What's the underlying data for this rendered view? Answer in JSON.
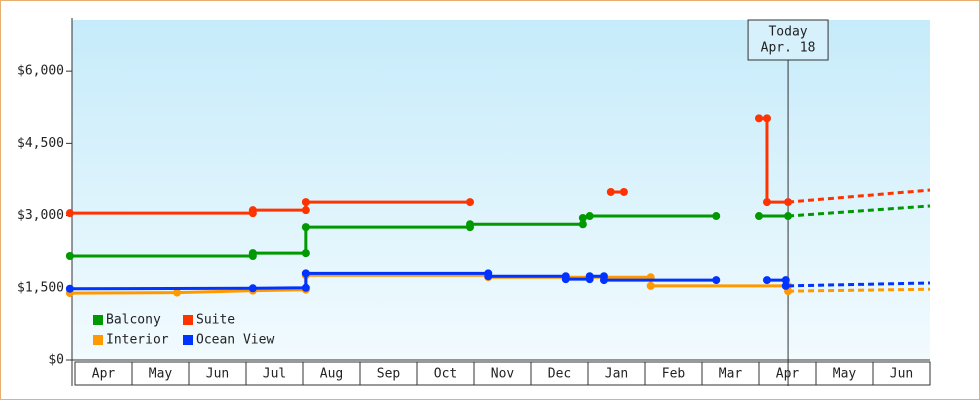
{
  "chart_data": {
    "type": "line",
    "categories": [
      "Apr",
      "May",
      "Jun",
      "Jul",
      "Aug",
      "Sep",
      "Oct",
      "Nov",
      "Dec",
      "Jan",
      "Feb",
      "Mar",
      "Apr",
      "May",
      "Jun"
    ],
    "xlim": [
      -0.1,
      15
    ],
    "ylim": [
      0,
      7000
    ],
    "yticks": [
      {
        "value": 0,
        "label": "$0"
      },
      {
        "value": 1500,
        "label": "$1,500"
      },
      {
        "value": 3000,
        "label": "$3,000"
      },
      {
        "value": 4500,
        "label": "$4,500"
      },
      {
        "value": 6000,
        "label": "$6,000"
      }
    ],
    "grid": false,
    "annotation": {
      "x": 12.51,
      "lines": [
        "Today",
        "Apr. 18"
      ]
    },
    "series": [
      {
        "name": "Balcony",
        "color": "#009900",
        "x": [
          -0.09,
          3.12,
          3.12,
          4.05,
          4.05,
          6.93,
          6.93,
          8.91,
          8.91,
          9.03,
          11.25,
          null,
          12.0,
          12.51
        ],
        "values": [
          2160,
          2160,
          2220,
          2220,
          2760,
          2760,
          2820,
          2820,
          2950,
          2990,
          2990,
          null,
          2990,
          2990
        ],
        "forecast": {
          "x": [
            12.51,
            15
          ],
          "values": [
            2990,
            3200
          ]
        }
      },
      {
        "name": "Suite",
        "color": "#ff3300",
        "x": [
          -0.09,
          3.12,
          3.12,
          4.05,
          4.05,
          6.93,
          null,
          9.4,
          9.63,
          null,
          12.0,
          12.14,
          12.14,
          12.51
        ],
        "values": [
          3050,
          3050,
          3112,
          3112,
          3280,
          3280,
          null,
          3490,
          3490,
          null,
          5020,
          5020,
          3280,
          3280
        ],
        "forecast": {
          "x": [
            12.51,
            15
          ],
          "values": [
            3280,
            3530
          ]
        }
      },
      {
        "name": "Interior",
        "color": "#ff9900",
        "x": [
          -0.09,
          1.79,
          3.12,
          4.05,
          4.05,
          7.25,
          7.25,
          10.1,
          10.1,
          12.51,
          12.51
        ],
        "values": [
          1390,
          1400,
          1440,
          1460,
          1760,
          1760,
          1720,
          1720,
          1540,
          1540,
          1430
        ],
        "forecast": {
          "x": [
            12.51,
            15
          ],
          "values": [
            1430,
            1470
          ]
        }
      },
      {
        "name": "Ocean View",
        "color": "#0033ff",
        "x": [
          -0.09,
          3.12,
          4.05,
          4.05,
          7.25,
          7.25,
          8.61,
          8.61,
          9.03,
          9.03,
          9.28,
          9.28,
          11.25,
          null,
          12.14,
          12.47,
          12.47
        ],
        "values": [
          1480,
          1490,
          1500,
          1800,
          1800,
          1740,
          1740,
          1680,
          1680,
          1740,
          1740,
          1660,
          1660,
          null,
          1660,
          1660,
          1540
        ],
        "forecast": {
          "x": [
            12.51,
            15
          ],
          "values": [
            1540,
            1600
          ]
        }
      }
    ]
  }
}
